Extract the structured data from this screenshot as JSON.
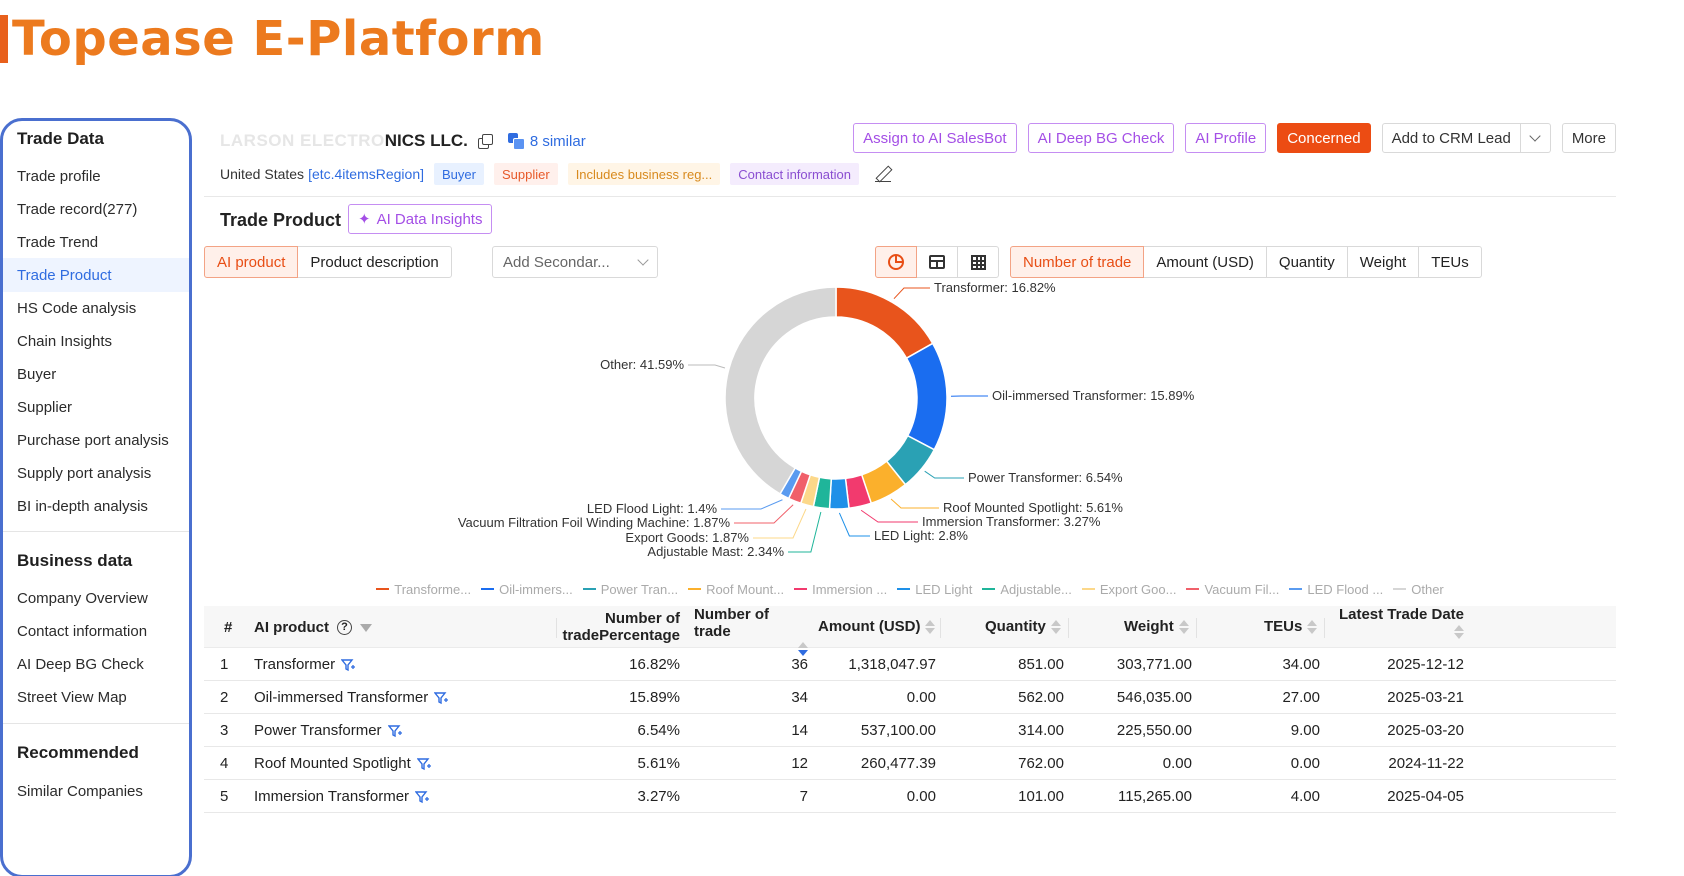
{
  "brand": {
    "title": "Topease E-Platform"
  },
  "sidebar": {
    "sections": [
      {
        "title": "Trade Data",
        "items": [
          {
            "label": "Trade profile"
          },
          {
            "label": "Trade record(277)"
          },
          {
            "label": "Trade Trend"
          },
          {
            "label": "Trade Product",
            "active": true
          },
          {
            "label": "HS Code analysis"
          },
          {
            "label": "Chain Insights"
          },
          {
            "label": "Buyer"
          },
          {
            "label": "Supplier"
          },
          {
            "label": "Purchase port analysis"
          },
          {
            "label": "Supply port analysis"
          },
          {
            "label": "BI in-depth analysis"
          }
        ]
      },
      {
        "title": "Business data",
        "items": [
          {
            "label": "Company Overview"
          },
          {
            "label": "Contact information"
          },
          {
            "label": "AI Deep BG Check"
          },
          {
            "label": "Street View Map"
          }
        ]
      },
      {
        "title": "Recommended",
        "items": [
          {
            "label": "Similar Companies"
          }
        ]
      }
    ]
  },
  "company": {
    "name_hidden": "LARSON ELECTRO",
    "name": "NICS LLC.",
    "similar": "8 similar",
    "country": "United States",
    "region_link": "[etc.4itemsRegion]",
    "tags": {
      "buyer": "Buyer",
      "supplier": "Supplier",
      "business": "Includes business reg...",
      "contact": "Contact information"
    }
  },
  "actions": {
    "assign": "Assign to AI SalesBot",
    "deep_check": "AI Deep BG Check",
    "profile": "AI Profile",
    "concerned": "Concerned",
    "crm": "Add to CRM Lead",
    "more": "More"
  },
  "section": {
    "title": "Trade Product",
    "insights": "AI Data Insights"
  },
  "toolbar": {
    "ai_product": "AI product",
    "product_desc": "Product description",
    "secondary_placeholder": "Add Secondar...",
    "metrics": [
      "Number of trade",
      "Amount (USD)",
      "Quantity",
      "Weight",
      "TEUs"
    ]
  },
  "colors": {
    "accent": "#e84e15",
    "link": "#2f6ce0",
    "ai_purple": "#a44fe6"
  },
  "chart_data": {
    "type": "pie",
    "donut": true,
    "slices": [
      {
        "label": "Transformer",
        "value": 16.82,
        "color": "#e8541c"
      },
      {
        "label": "Oil-immersed Transformer",
        "value": 15.89,
        "color": "#1a6df0"
      },
      {
        "label": "Power Transformer",
        "value": 6.54,
        "color": "#2aa1b4"
      },
      {
        "label": "Roof Mounted Spotlight",
        "value": 5.61,
        "color": "#fbb02c"
      },
      {
        "label": "Immersion Transformer",
        "value": 3.27,
        "color": "#f23a6e"
      },
      {
        "label": "LED Light",
        "value": 2.8,
        "color": "#1e90e8"
      },
      {
        "label": "Adjustable Mast",
        "value": 2.34,
        "color": "#1fb59a"
      },
      {
        "label": "Export Goods",
        "value": 1.87,
        "color": "#fcd88a"
      },
      {
        "label": "Vacuum Filtration Foil Winding Machine",
        "value": 1.87,
        "color": "#f0606a"
      },
      {
        "label": "LED Flood Light",
        "value": 1.4,
        "color": "#5a9bf0"
      },
      {
        "label": "Other",
        "value": 41.59,
        "color": "#d6d6d6"
      }
    ],
    "data_labels": [
      "Transformer: 16.82%",
      "Oil-immersed Transformer: 15.89%",
      "Power Transformer: 6.54%",
      "Roof Mounted Spotlight: 5.61%",
      "Immersion Transformer: 3.27%",
      "LED Light: 2.8%",
      "Adjustable Mast: 2.34%",
      "Export Goods: 1.87%",
      "Vacuum Filtration Foil Winding Machine: 1.87%",
      "LED Flood Light: 1.4%",
      "Other: 41.59%"
    ],
    "legend_position": "bottom",
    "legend": [
      "Transforme...",
      "Oil-immers...",
      "Power Tran...",
      "Roof Mount...",
      "Immersion ...",
      "LED Light",
      "Adjustable...",
      "Export Goo...",
      "Vacuum Fil...",
      "LED Flood ...",
      "Other"
    ]
  },
  "table": {
    "headers": {
      "index": "#",
      "product": "AI product",
      "pct_line1": "Number of",
      "pct_line2": "tradePercentage",
      "count": "Number of trade",
      "amount": "Amount (USD)",
      "quantity": "Quantity",
      "weight": "Weight",
      "teus": "TEUs",
      "latest": "Latest Trade Date"
    },
    "rows": [
      {
        "index": "1",
        "product": "Transformer",
        "pct": "16.82%",
        "count": "36",
        "amount": "1,318,047.97",
        "quantity": "851.00",
        "weight": "303,771.00",
        "teus": "34.00",
        "date": "2025-12-12"
      },
      {
        "index": "2",
        "product": "Oil-immersed Transformer",
        "pct": "15.89%",
        "count": "34",
        "amount": "0.00",
        "quantity": "562.00",
        "weight": "546,035.00",
        "teus": "27.00",
        "date": "2025-03-21"
      },
      {
        "index": "3",
        "product": "Power Transformer",
        "pct": "6.54%",
        "count": "14",
        "amount": "537,100.00",
        "quantity": "314.00",
        "weight": "225,550.00",
        "teus": "9.00",
        "date": "2025-03-20"
      },
      {
        "index": "4",
        "product": "Roof Mounted Spotlight",
        "pct": "5.61%",
        "count": "12",
        "amount": "260,477.39",
        "quantity": "762.00",
        "weight": "0.00",
        "teus": "0.00",
        "date": "2024-11-22"
      },
      {
        "index": "5",
        "product": "Immersion Transformer",
        "pct": "3.27%",
        "count": "7",
        "amount": "0.00",
        "quantity": "101.00",
        "weight": "115,265.00",
        "teus": "4.00",
        "date": "2025-04-05"
      }
    ]
  }
}
